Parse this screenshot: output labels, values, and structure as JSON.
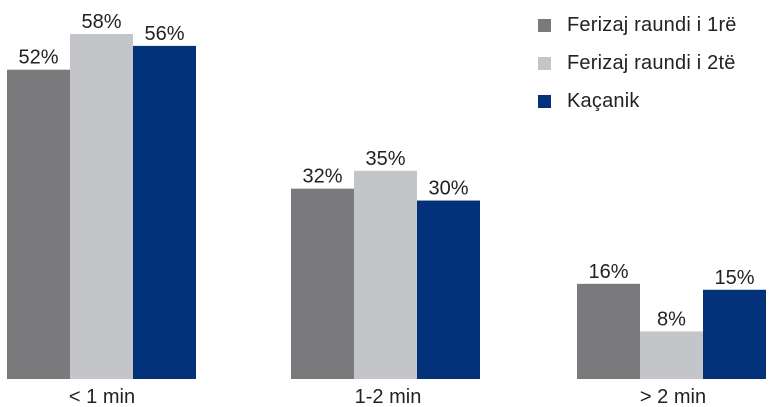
{
  "chart_data": {
    "type": "bar",
    "categories": [
      "< 1 min",
      "1-2 min",
      "> 2 min"
    ],
    "series": [
      {
        "name": "Ferizaj raundi i 1rë",
        "color": "#7a7a7c",
        "values": [
          52,
          32,
          16
        ],
        "labels": [
          "52%",
          "32%",
          "16%"
        ]
      },
      {
        "name": "Ferizaj raundi i 2të",
        "color": "#c3c5c8",
        "values": [
          58,
          35,
          8
        ],
        "labels": [
          "58%",
          "35%",
          "8%"
        ]
      },
      {
        "name": "Kaçanik",
        "color": "#03317a",
        "values": [
          56,
          30,
          15
        ],
        "labels": [
          "56%",
          "30%",
          "15%"
        ]
      }
    ],
    "ylim": [
      0,
      60
    ],
    "legend_position": "top-right",
    "grid": false
  }
}
